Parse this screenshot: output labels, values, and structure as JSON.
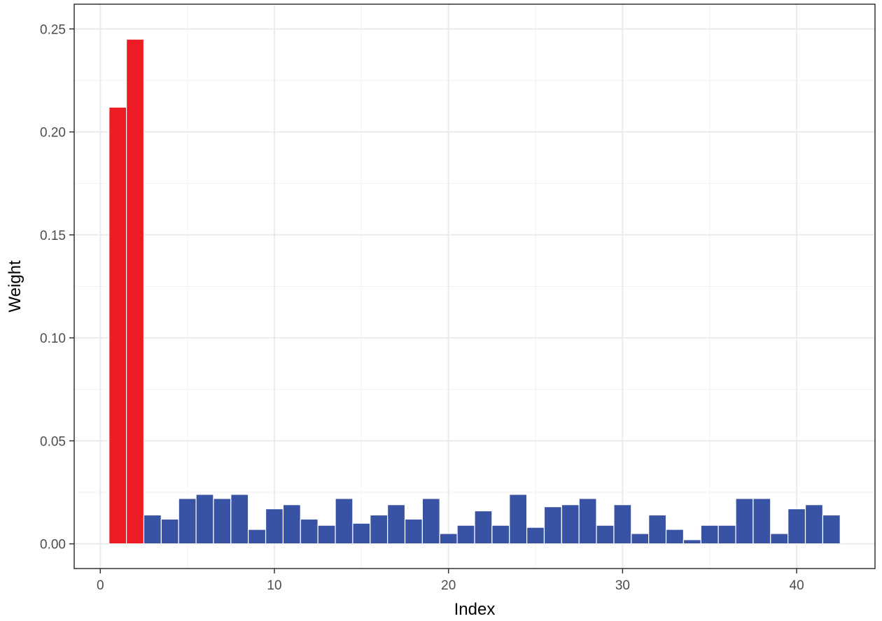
{
  "chart_data": {
    "type": "bar",
    "xlabel": "Index",
    "ylabel": "Weight",
    "xlim": [
      -1.5,
      44.5
    ],
    "ylim": [
      -0.012,
      0.262
    ],
    "x_ticks": [
      0,
      10,
      20,
      30,
      40
    ],
    "x_tick_labels": [
      "0",
      "10",
      "20",
      "30",
      "40"
    ],
    "y_ticks": [
      0.0,
      0.05,
      0.1,
      0.15,
      0.2,
      0.25
    ],
    "y_tick_labels": [
      "0.00",
      "0.05",
      "0.10",
      "0.15",
      "0.20",
      "0.25"
    ],
    "grid": true,
    "legend": "none",
    "colors": {
      "highlight": "#ed1c24",
      "default": "#3953a4",
      "bar_outline": "#ffffff"
    },
    "x": [
      1,
      2,
      3,
      4,
      5,
      6,
      7,
      8,
      9,
      10,
      11,
      12,
      13,
      14,
      15,
      16,
      17,
      18,
      19,
      20,
      21,
      22,
      23,
      24,
      25,
      26,
      27,
      28,
      29,
      30,
      31,
      32,
      33,
      34,
      35,
      36,
      37,
      38,
      39,
      40,
      41,
      42
    ],
    "values": [
      0.212,
      0.245,
      0.014,
      0.012,
      0.022,
      0.024,
      0.022,
      0.024,
      0.007,
      0.017,
      0.019,
      0.012,
      0.009,
      0.022,
      0.01,
      0.014,
      0.019,
      0.012,
      0.022,
      0.005,
      0.009,
      0.016,
      0.009,
      0.024,
      0.008,
      0.018,
      0.019,
      0.022,
      0.009,
      0.019,
      0.005,
      0.014,
      0.007,
      0.002,
      0.009,
      0.009,
      0.022,
      0.022,
      0.005,
      0.017,
      0.019,
      0.014
    ],
    "highlight": [
      true,
      true,
      false,
      false,
      false,
      false,
      false,
      false,
      false,
      false,
      false,
      false,
      false,
      false,
      false,
      false,
      false,
      false,
      false,
      false,
      false,
      false,
      false,
      false,
      false,
      false,
      false,
      false,
      false,
      false,
      false,
      false,
      false,
      false,
      false,
      false,
      false,
      false,
      false,
      false,
      false,
      false
    ]
  }
}
